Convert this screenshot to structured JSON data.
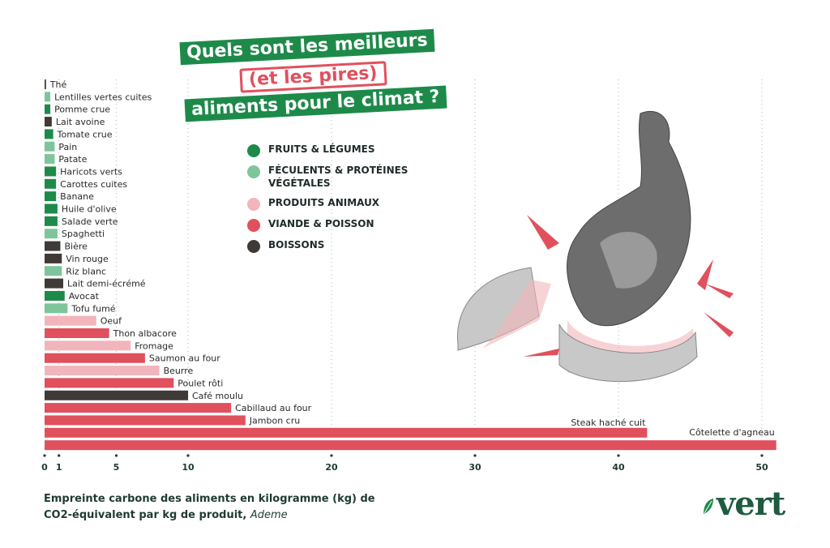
{
  "title": {
    "line1": "Quels sont les meilleurs",
    "line2": "(et les pires)",
    "line3": "aliments pour le climat ?"
  },
  "legend": [
    {
      "label": "FRUITS & LÉGUMES",
      "color": "#1e8a4a"
    },
    {
      "label": "FÉCULENTS & PROTÉINES VÉGÉTALES",
      "color": "#7ec59b"
    },
    {
      "label": "PRODUITS ANIMAUX",
      "color": "#f2b5bb"
    },
    {
      "label": "VIANDE & POISSON",
      "color": "#e0505d"
    },
    {
      "label": "BOISSONS",
      "color": "#3f3a38"
    }
  ],
  "footer": {
    "text": "Empreinte carbone des aliments en kilogramme (kg) de CO2-équivalent par kg de produit, ",
    "source": "Ademe"
  },
  "logo": "vert",
  "chart_data": {
    "type": "bar",
    "orientation": "horizontal",
    "xlim": [
      0,
      52
    ],
    "xticks": [
      0,
      1,
      5,
      10,
      20,
      30,
      40,
      50
    ],
    "grid": "vertical dotted",
    "categories": [
      "Thé",
      "Lentilles vertes cuites",
      "Pomme crue",
      "Lait avoine",
      "Tomate crue",
      "Pain",
      "Patate",
      "Haricots verts",
      "Carottes cuites",
      "Banane",
      "Huile d'olive",
      "Salade verte",
      "Spaghetti",
      "Bière",
      "Vin rouge",
      "Riz blanc",
      "Lait demi-écrémé",
      "Avocat",
      "Tofu fumé",
      "Oeuf",
      "Thon albacore",
      "Fromage",
      "Saumon au four",
      "Beurre",
      "Poulet rôti",
      "Café moulu",
      "Cabillaud au four",
      "Jambon cru",
      "Steak haché cuit",
      "Côtelette d'agneau"
    ],
    "values": [
      0.1,
      0.4,
      0.4,
      0.5,
      0.6,
      0.7,
      0.7,
      0.8,
      0.8,
      0.8,
      0.9,
      0.9,
      0.9,
      1.1,
      1.2,
      1.2,
      1.3,
      1.4,
      1.6,
      3.6,
      4.5,
      6.0,
      7.0,
      8.0,
      9.0,
      10.0,
      13.0,
      14.0,
      42.0,
      51.0
    ],
    "groups": [
      "boissons",
      "feculents",
      "fruits",
      "boissons",
      "fruits",
      "feculents",
      "feculents",
      "fruits",
      "fruits",
      "fruits",
      "fruits",
      "fruits",
      "feculents",
      "boissons",
      "boissons",
      "feculents",
      "boissons",
      "fruits",
      "feculents",
      "animaux",
      "viande",
      "animaux",
      "viande",
      "animaux",
      "viande",
      "boissons",
      "viande",
      "viande",
      "viande",
      "viande"
    ],
    "group_colors": {
      "fruits": "#1e8a4a",
      "feculents": "#7ec59b",
      "animaux": "#f2b5bb",
      "viande": "#e0505d",
      "boissons": "#3f3a38"
    }
  }
}
